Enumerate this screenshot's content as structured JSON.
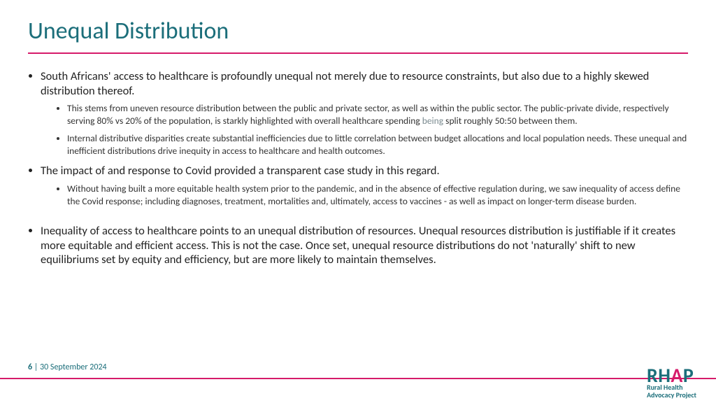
{
  "title": "Unequal Distribution",
  "colors": {
    "heading": "#1b6e7a",
    "accent": "#d61b6a",
    "body": "#222222",
    "muted": "#7a8a8f",
    "background": "#ffffff"
  },
  "typography": {
    "title_fontsize": 34,
    "bullet_fontsize": 16.5,
    "subbullet_fontsize": 13.5,
    "footer_fontsize": 12
  },
  "bullets": [
    {
      "text": "South Africans' access to healthcare is profoundly unequal not merely due to resource constraints, but also due to a highly skewed distribution thereof.",
      "sub": [
        {
          "pre": "This stems from uneven resource distribution between the public and private sector, as well as within the public sector. The public-private divide, respectively serving 80% vs 20% of the population, is starkly highlighted with overall healthcare spending ",
          "muted": "being",
          "post": " split roughly 50:50 between them."
        },
        {
          "pre": "Internal distributive disparities create substantial inefficiencies due to little correlation between budget allocations and local population needs. These unequal and inefficient distributions drive inequity in access to healthcare and health outcomes.",
          "muted": "",
          "post": ""
        }
      ]
    },
    {
      "text": "The impact of and response to Covid provided a transparent case study in this regard.",
      "sub": [
        {
          "pre": "Without having built a more equitable health system prior to the pandemic, and in the absence of effective regulation during, we saw inequality of access define the Covid response; including diagnoses, treatment, mortalities and, ultimately, access to vaccines - as well as impact on longer-term disease burden.",
          "muted": "",
          "post": ""
        }
      ]
    },
    {
      "text": "Inequality of access to healthcare points to an unequal distribution of resources. Unequal resources distribution is justifiable if it creates more equitable and efficient access. This is not the case. Once set, unequal resource distributions do not 'naturally' shift to new equilibriums set by equity and efficiency, but are more likely to maintain themselves.",
      "sub": []
    }
  ],
  "footer": {
    "page": "6",
    "separator": " | ",
    "date": "30 September 2024"
  },
  "logo": {
    "line1_pre": "RH",
    "line1_accent": "A",
    "line1_post": "P",
    "line2": "Rural Health",
    "line3": "Advocacy Project"
  }
}
